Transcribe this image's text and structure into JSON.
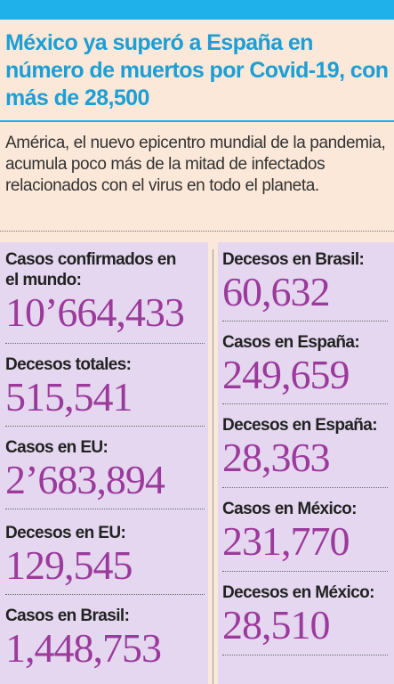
{
  "headline": "México ya superó a España en número de muertos por Covid-19, con más de 28,500",
  "summary": "América, el nuevo epicentro mundial de la pandemia, acumula poco más de la mitad de infectados relacionados con el virus en todo el planeta.",
  "left_column": [
    {
      "label": "Casos confirmados en el mundo:",
      "value": "10’664,433"
    },
    {
      "label": "Decesos totales:",
      "value": "515,541"
    },
    {
      "label": "Casos en EU:",
      "value": "2’683,894"
    },
    {
      "label": "Decesos en EU:",
      "value": "129,545"
    },
    {
      "label": "Casos en Brasil:",
      "value": "1,448,753"
    }
  ],
  "right_column": [
    {
      "label": "Decesos en Brasil:",
      "value": "60,632"
    },
    {
      "label": "Casos en España:",
      "value": "249,659"
    },
    {
      "label": "Decesos en España:",
      "value": "28,363"
    },
    {
      "label": "Casos en México:",
      "value": "231,770"
    },
    {
      "label": "Decesos en México:",
      "value": "28,510"
    }
  ],
  "colors": {
    "accent_blue": "#1fb2ea",
    "headline_blue": "#1b9fd6",
    "number_purple": "#9c3a9c",
    "panel_lavender": "#e4d7ef",
    "background": "#fbe8d8"
  }
}
